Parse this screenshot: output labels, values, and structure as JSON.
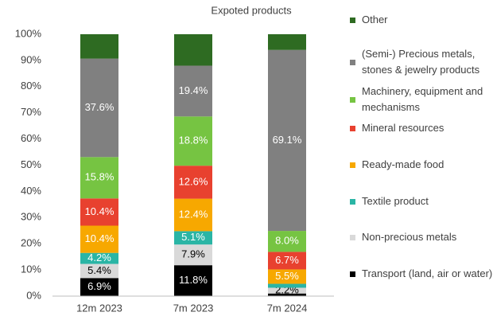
{
  "chart_data": {
    "type": "stacked_bar",
    "title": "Expoted products",
    "categories": [
      "12m 2023",
      "7m 2023",
      "7m 2024"
    ],
    "series": [
      {
        "name": "Transport (land, air or water)",
        "color": "#000000",
        "values": [
          6.9,
          11.8,
          1.0
        ],
        "value_labels": [
          "6.9%",
          "11.8%",
          null
        ]
      },
      {
        "name": "Non-precious metals",
        "color": "#d9d9d9",
        "values": [
          5.4,
          7.9,
          2.2
        ],
        "value_labels": [
          "5.4%",
          "7.9%",
          "2.2%"
        ]
      },
      {
        "name": "Textile product",
        "color": "#2ab5a5",
        "values": [
          4.2,
          5.1,
          1.5
        ],
        "value_labels": [
          "4.2%",
          "5.1%",
          null
        ]
      },
      {
        "name": "Ready-made food",
        "color": "#f7a800",
        "values": [
          10.4,
          12.4,
          5.5
        ],
        "value_labels": [
          "10.4%",
          "12.4%",
          "5.5%"
        ]
      },
      {
        "name": "Mineral resources",
        "color": "#e8412f",
        "values": [
          10.4,
          12.6,
          6.7
        ],
        "value_labels": [
          "10.4%",
          "12.6%",
          "6.7%"
        ]
      },
      {
        "name": "Machinery, equipment and mechanisms",
        "color": "#76c442",
        "values": [
          15.8,
          18.8,
          8.0
        ],
        "value_labels": [
          "15.8%",
          "18.8%",
          "8.0%"
        ]
      },
      {
        "name": "(Semi-) Precious metals, stones & jewelry products",
        "color": "#808080",
        "values": [
          37.6,
          19.4,
          69.1
        ],
        "value_labels": [
          "37.6%",
          "19.4%",
          "69.1%"
        ]
      },
      {
        "name": "Other",
        "color": "#2e6b22",
        "values": [
          9.3,
          12.0,
          6.0
        ],
        "value_labels": [
          null,
          null,
          null
        ]
      }
    ],
    "ylim": [
      0,
      100
    ],
    "yticks": [
      {
        "value": 0,
        "label": "0%"
      },
      {
        "value": 10,
        "label": "10%"
      },
      {
        "value": 20,
        "label": "20%"
      },
      {
        "value": 30,
        "label": "30%"
      },
      {
        "value": 40,
        "label": "40%"
      },
      {
        "value": 50,
        "label": "50%"
      },
      {
        "value": 60,
        "label": "60%"
      },
      {
        "value": 70,
        "label": "70%"
      },
      {
        "value": 80,
        "label": "80%"
      },
      {
        "value": 90,
        "label": "90%"
      },
      {
        "value": 100,
        "label": "100%"
      }
    ],
    "grid": false,
    "legend": "right"
  }
}
